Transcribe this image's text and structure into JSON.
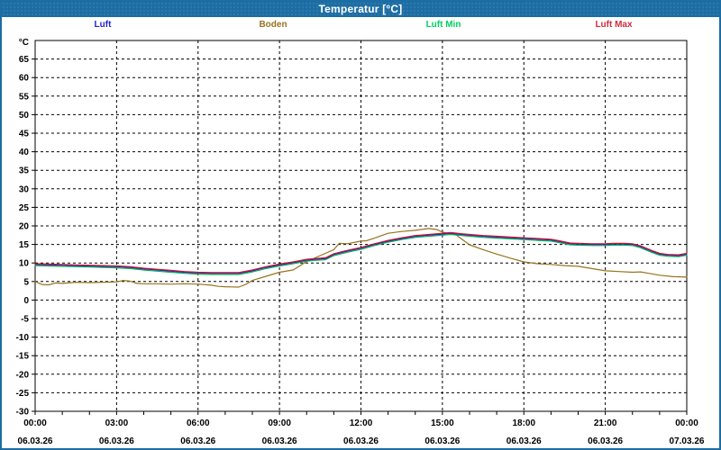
{
  "window": {
    "title": "Temperatur [°C]"
  },
  "colors": {
    "panel_blue": "#1c6da3",
    "background": "#ffffff",
    "grid": "#000000",
    "luft": "#2424cc",
    "boden": "#97731d",
    "luft_min": "#00b34d",
    "luft_max": "#cc1526"
  },
  "legend": {
    "items": [
      {
        "label": "Luft",
        "color": "#2424cc"
      },
      {
        "label": "Boden",
        "color": "#97731d"
      },
      {
        "label": "Luft Min",
        "color": "#00cf5f"
      },
      {
        "label": "Luft Max",
        "color": "#d22b3c"
      }
    ]
  },
  "chart_data": {
    "type": "line",
    "title": "Temperatur [°C]",
    "ylabel": "°C",
    "ylim": [
      -30,
      70
    ],
    "xlim_hours": [
      0,
      24
    ],
    "grid": "dashed",
    "legend_position": "top",
    "y_ticks": [
      65,
      60,
      55,
      50,
      45,
      40,
      35,
      30,
      25,
      20,
      15,
      10,
      5,
      0,
      -5,
      -10,
      -15,
      -20,
      -25,
      -30
    ],
    "x_ticks": [
      {
        "hour": 0,
        "time": "00:00",
        "date": "06.03.26"
      },
      {
        "hour": 3,
        "time": "03:00",
        "date": "06.03.26"
      },
      {
        "hour": 6,
        "time": "06:00",
        "date": "06.03.26"
      },
      {
        "hour": 9,
        "time": "09:00",
        "date": "06.03.26"
      },
      {
        "hour": 12,
        "time": "12:00",
        "date": "06.03.26"
      },
      {
        "hour": 15,
        "time": "15:00",
        "date": "06.03.26"
      },
      {
        "hour": 18,
        "time": "18:00",
        "date": "06.03.26"
      },
      {
        "hour": 21,
        "time": "21:00",
        "date": "06.03.26"
      },
      {
        "hour": 24,
        "time": "00:00",
        "date": "07.03.26"
      }
    ],
    "series": [
      {
        "name": "Boden",
        "color": "#97731d",
        "x": [
          0,
          0.25,
          0.5,
          0.75,
          1,
          1.5,
          2,
          2.5,
          3,
          3.25,
          3.5,
          3.75,
          4,
          4.5,
          5,
          5.5,
          6,
          6.5,
          6.75,
          7,
          7.5,
          7.75,
          8,
          8.5,
          9,
          9.5,
          10,
          10.5,
          11,
          11.2,
          11.5,
          12,
          12.2,
          12.5,
          13,
          13.5,
          14,
          14.5,
          14.8,
          15,
          15.5,
          16,
          16.5,
          17,
          17.5,
          18,
          18.5,
          19,
          19.5,
          20,
          20.5,
          21,
          21.5,
          22,
          22.3,
          22.6,
          23,
          23.5,
          24
        ],
        "y": [
          5.0,
          4.2,
          4.1,
          4.6,
          4.5,
          4.8,
          4.7,
          4.8,
          4.9,
          5.3,
          5.1,
          4.5,
          4.4,
          4.4,
          4.3,
          4.4,
          4.3,
          4.0,
          3.7,
          3.6,
          3.5,
          4.2,
          5.3,
          6.4,
          7.5,
          8.1,
          10.4,
          12.0,
          13.6,
          15.3,
          15.2,
          15.9,
          16.0,
          16.7,
          18.0,
          18.5,
          18.8,
          19.3,
          19.0,
          18.3,
          17.6,
          14.9,
          13.6,
          12.4,
          11.3,
          10.3,
          9.8,
          9.6,
          9.3,
          9.1,
          8.5,
          7.9,
          7.7,
          7.5,
          7.6,
          7.2,
          6.7,
          6.3,
          6.2
        ]
      },
      {
        "name": "Luft Min",
        "color": "#00b34d",
        "x": [
          0,
          0.5,
          1,
          1.5,
          2,
          2.5,
          3,
          3.5,
          4,
          4.5,
          5,
          5.5,
          6,
          6.5,
          7,
          7.5,
          8,
          8.5,
          9,
          9.5,
          10,
          10.3,
          10.7,
          11,
          11.5,
          12,
          12.5,
          13,
          13.5,
          14,
          14.5,
          15,
          15.3,
          15.7,
          16,
          16.5,
          17,
          17.5,
          18,
          18.5,
          19,
          19.3,
          19.7,
          20,
          20.5,
          21,
          21.3,
          21.7,
          22,
          22.3,
          22.7,
          23,
          23.3,
          23.7,
          24
        ],
        "y": [
          9.3,
          9.2,
          9.1,
          9.0,
          8.9,
          8.8,
          8.7,
          8.5,
          8.1,
          7.8,
          7.5,
          7.2,
          7.0,
          6.9,
          6.9,
          6.9,
          7.6,
          8.5,
          9.2,
          9.8,
          10.5,
          10.7,
          10.9,
          12.0,
          12.9,
          13.7,
          14.7,
          15.6,
          16.3,
          16.9,
          17.2,
          17.5,
          17.7,
          17.4,
          17.2,
          16.9,
          16.7,
          16.5,
          16.3,
          16.1,
          15.9,
          15.5,
          14.9,
          14.8,
          14.7,
          14.7,
          14.8,
          14.8,
          14.7,
          14.1,
          12.9,
          12.1,
          11.8,
          11.7,
          12.1
        ]
      },
      {
        "name": "Luft",
        "color": "#2424cc",
        "x": [
          0,
          0.5,
          1,
          1.5,
          2,
          2.5,
          3,
          3.5,
          4,
          4.5,
          5,
          5.5,
          6,
          6.5,
          7,
          7.5,
          8,
          8.5,
          9,
          9.5,
          10,
          10.3,
          10.7,
          11,
          11.5,
          12,
          12.5,
          13,
          13.5,
          14,
          14.5,
          15,
          15.3,
          15.7,
          16,
          16.5,
          17,
          17.5,
          18,
          18.5,
          19,
          19.3,
          19.7,
          20,
          20.5,
          21,
          21.3,
          21.7,
          22,
          22.3,
          22.7,
          23,
          23.3,
          23.7,
          24
        ],
        "y": [
          9.6,
          9.5,
          9.4,
          9.3,
          9.2,
          9.1,
          9.0,
          8.8,
          8.4,
          8.1,
          7.8,
          7.5,
          7.3,
          7.2,
          7.2,
          7.2,
          7.9,
          8.8,
          9.5,
          10.1,
          10.8,
          11.0,
          11.2,
          12.3,
          13.2,
          14.0,
          15.0,
          15.9,
          16.6,
          17.2,
          17.5,
          17.8,
          18.0,
          17.7,
          17.5,
          17.2,
          17.0,
          16.8,
          16.6,
          16.4,
          16.2,
          15.8,
          15.2,
          15.1,
          15.0,
          15.0,
          15.1,
          15.1,
          15.0,
          14.4,
          13.2,
          12.4,
          12.1,
          12.0,
          12.4
        ]
      },
      {
        "name": "Luft Max",
        "color": "#cc1526",
        "x": [
          0,
          0.5,
          1,
          1.5,
          2,
          2.5,
          3,
          3.5,
          4,
          4.5,
          5,
          5.5,
          6,
          6.5,
          7,
          7.5,
          8,
          8.5,
          9,
          9.5,
          10,
          10.3,
          10.7,
          11,
          11.5,
          12,
          12.5,
          13,
          13.5,
          14,
          14.5,
          15,
          15.3,
          15.7,
          16,
          16.5,
          17,
          17.5,
          18,
          18.5,
          19,
          19.3,
          19.7,
          20,
          20.5,
          21,
          21.3,
          21.7,
          22,
          22.3,
          22.7,
          23,
          23.3,
          23.7,
          24
        ],
        "y": [
          9.8,
          9.7,
          9.6,
          9.5,
          9.4,
          9.3,
          9.2,
          9.0,
          8.6,
          8.3,
          8.0,
          7.7,
          7.5,
          7.4,
          7.4,
          7.4,
          8.1,
          9.0,
          9.7,
          10.3,
          11.0,
          11.2,
          11.4,
          12.5,
          13.4,
          14.2,
          15.2,
          16.1,
          16.8,
          17.4,
          17.7,
          18.0,
          18.2,
          17.9,
          17.7,
          17.4,
          17.2,
          17.0,
          16.8,
          16.6,
          16.4,
          16.0,
          15.4,
          15.3,
          15.2,
          15.2,
          15.3,
          15.3,
          15.2,
          14.6,
          13.4,
          12.6,
          12.3,
          12.2,
          12.6
        ]
      }
    ]
  }
}
